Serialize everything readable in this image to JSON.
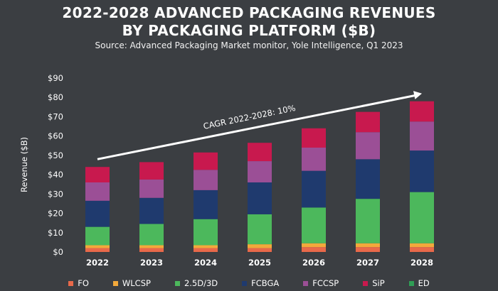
{
  "title_line1": "2022-2028 ADVANCED PACKAGING REVENUES",
  "title_line2": "BY PACKAGING PLATFORM ($B)",
  "source": "Source: Advanced Packaging Market monitor, Yole Intelligence, Q1 2023",
  "chart_data": {
    "type": "bar",
    "stacked": true,
    "categories": [
      "2022",
      "2023",
      "2024",
      "2025",
      "2026",
      "2027",
      "2028"
    ],
    "series": [
      {
        "name": "FO",
        "color": "#e8694a",
        "values": [
          2.0,
          2.0,
          2.0,
          2.0,
          2.5,
          2.5,
          2.5
        ]
      },
      {
        "name": "WLCSP",
        "color": "#f2a93b",
        "values": [
          1.5,
          1.5,
          1.5,
          2.0,
          2.0,
          2.0,
          2.0
        ]
      },
      {
        "name": "2.5D/3D",
        "color": "#4cb85c",
        "values": [
          9.5,
          11.0,
          13.5,
          15.5,
          18.5,
          23.0,
          26.5
        ]
      },
      {
        "name": "FCBGA",
        "color": "#1f3a6e",
        "values": [
          13.5,
          13.5,
          15.0,
          16.5,
          19.0,
          20.5,
          21.5
        ]
      },
      {
        "name": "FCCSP",
        "color": "#9b4f96",
        "values": [
          9.5,
          9.5,
          10.5,
          11.0,
          12.0,
          14.0,
          15.0
        ]
      },
      {
        "name": "SiP",
        "color": "#c8194e",
        "values": [
          8.0,
          9.0,
          9.0,
          9.5,
          10.0,
          10.5,
          10.5
        ]
      },
      {
        "name": "ED",
        "color": "#2f9e55",
        "values": [
          0.0,
          0.0,
          0.0,
          0.0,
          0.0,
          0.0,
          0.0
        ]
      }
    ],
    "ylabel": "Revenue ($B)",
    "ylim": [
      0,
      90
    ],
    "yticks": [
      "$0",
      "$10",
      "$20",
      "$30",
      "$40",
      "$50",
      "$60",
      "$70",
      "$80",
      "$90"
    ],
    "grid": false,
    "legend_position": "bottom",
    "annotation": {
      "text": "CAGR 2022-2028: 10%",
      "start_value": 48,
      "end_value": 82
    }
  }
}
